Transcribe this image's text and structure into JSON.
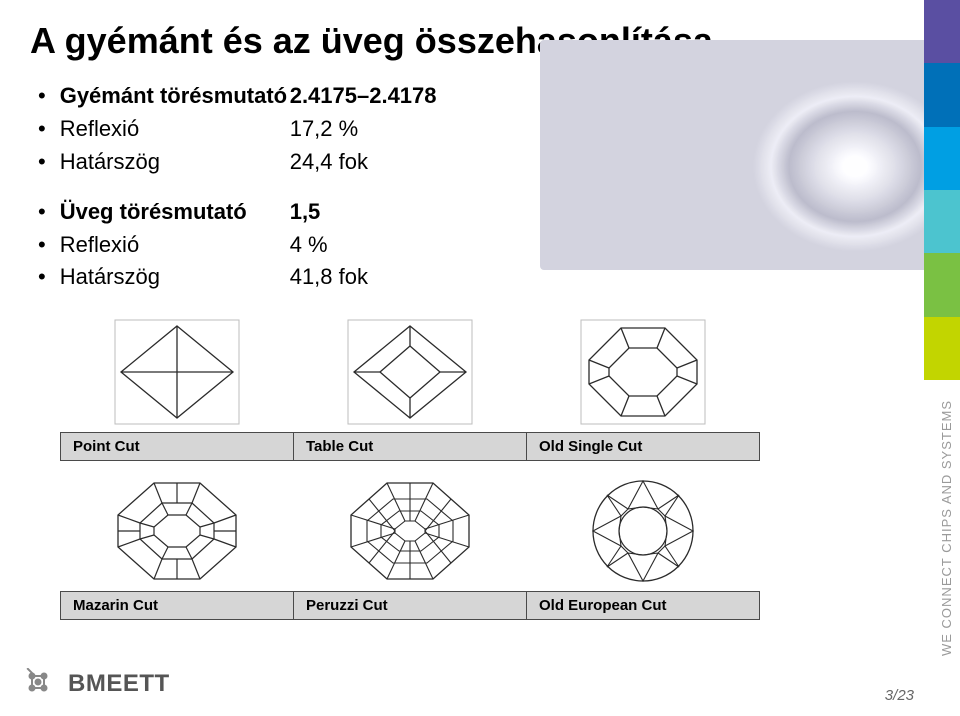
{
  "title": "A gyémánt és az üveg összehasonlítása",
  "groups": [
    {
      "name": "diamond",
      "lines": [
        {
          "label": "Gyémánt törésmutató",
          "value": "2.4175–2.4178",
          "bold": true
        },
        {
          "label": "Reflexió",
          "value": "17,2 %",
          "bold": false
        },
        {
          "label": "Határszög",
          "value": "24,4 fok",
          "bold": false
        }
      ]
    },
    {
      "name": "glass",
      "lines": [
        {
          "label": "Üveg törésmutató",
          "value": "1,5",
          "bold": true
        },
        {
          "label": "Reflexió",
          "value": "4 %",
          "bold": false
        },
        {
          "label": "Határszög",
          "value": "41,8 fok",
          "bold": false
        }
      ]
    }
  ],
  "cuts": {
    "rows": [
      {
        "labels": [
          "Point Cut",
          "Table Cut",
          "Old Single Cut"
        ],
        "style": "top"
      },
      {
        "labels": [
          "Mazarin Cut",
          "Peruzzi Cut",
          "Old European Cut"
        ],
        "style": "bottom"
      }
    ],
    "stroke": "#2b2b2b",
    "fill": "#ffffff",
    "bg_frame": "#bdbdbd",
    "label_bg": "#d6d6d6"
  },
  "footer": {
    "logo_text": "BMEETT",
    "tagline": "WE CONNECT CHIPS AND SYSTEMS",
    "page_current": "3",
    "page_total": "23"
  },
  "stripes_colors": [
    "#5a4fa2",
    "#0070b8",
    "#009fe3",
    "#4cc4cf",
    "#7ac143",
    "#c2d500"
  ],
  "background": "#ffffff"
}
